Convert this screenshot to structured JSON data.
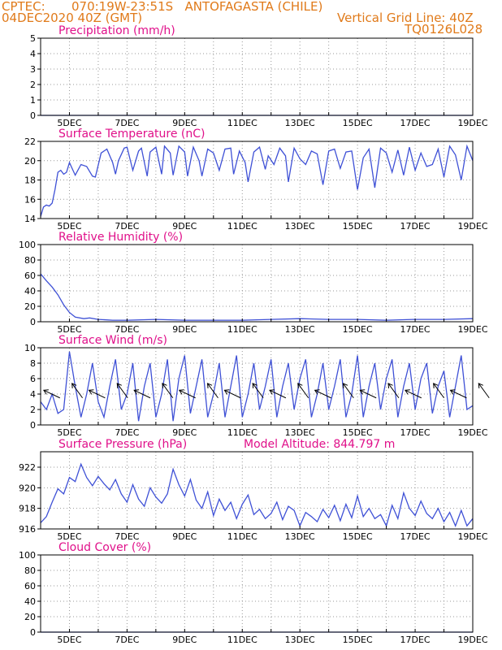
{
  "header": {
    "source": "CPTEC:",
    "location": "070:19W-23:51S   ANTOFAGASTA (CHILE)",
    "run": "04DEC2020 40Z (GMT)",
    "grid_line": "Vertical Grid Line: 40Z",
    "code": "TQ0126L028"
  },
  "x_ticks": [
    "5DEC",
    "7DEC",
    "9DEC",
    "11DEC",
    "13DEC",
    "15DEC",
    "17DEC",
    "19DEC"
  ],
  "chart_data": [
    {
      "type": "line",
      "title": "Precipitation (mm/h)",
      "ylim": [
        0,
        5
      ],
      "yticks": [
        0,
        1,
        2,
        3,
        4,
        5
      ],
      "x": [
        4.0,
        19.0
      ],
      "values": [
        0,
        0
      ],
      "color": "#3f51d6"
    },
    {
      "type": "line",
      "title": "Surface Temperature (nC)",
      "ylim": [
        14,
        22
      ],
      "yticks": [
        14,
        16,
        18,
        20,
        22
      ],
      "x": [
        4.0,
        4.1,
        4.2,
        4.3,
        4.4,
        4.5,
        4.6,
        4.7,
        4.8,
        4.9,
        5.0,
        5.2,
        5.4,
        5.6,
        5.8,
        5.9,
        6.1,
        6.3,
        6.5,
        6.6,
        6.7,
        6.9,
        7.0,
        7.2,
        7.4,
        7.5,
        7.7,
        7.8,
        8.0,
        8.2,
        8.3,
        8.5,
        8.6,
        8.8,
        9.0,
        9.1,
        9.3,
        9.5,
        9.6,
        9.8,
        10.0,
        10.2,
        10.4,
        10.6,
        10.7,
        10.9,
        11.1,
        11.2,
        11.4,
        11.6,
        11.8,
        11.9,
        12.1,
        12.3,
        12.5,
        12.6,
        12.8,
        13.0,
        13.2,
        13.4,
        13.6,
        13.8,
        14.0,
        14.2,
        14.4,
        14.6,
        14.8,
        15.0,
        15.2,
        15.4,
        15.6,
        15.8,
        16.0,
        16.2,
        16.4,
        16.6,
        16.8,
        17.0,
        17.2,
        17.4,
        17.6,
        17.8,
        18.0,
        18.2,
        18.4,
        18.6,
        18.8,
        19.0
      ],
      "values": [
        14.2,
        15.2,
        15.4,
        15.3,
        15.6,
        17.0,
        18.8,
        19.0,
        18.6,
        18.8,
        19.8,
        18.5,
        19.6,
        19.4,
        18.4,
        18.3,
        20.8,
        21.2,
        19.8,
        18.6,
        20.0,
        21.3,
        21.4,
        19.0,
        21.0,
        21.3,
        18.4,
        20.9,
        21.4,
        18.6,
        21.5,
        20.8,
        18.5,
        21.5,
        20.9,
        18.4,
        21.4,
        20.0,
        18.4,
        21.2,
        20.8,
        19.0,
        21.2,
        21.3,
        18.6,
        21.0,
        19.8,
        17.8,
        20.9,
        21.4,
        19.1,
        20.5,
        19.6,
        21.3,
        20.5,
        17.8,
        21.3,
        20.2,
        19.6,
        21.0,
        20.7,
        17.5,
        21.0,
        21.2,
        19.2,
        20.9,
        21.0,
        17.0,
        20.3,
        21.2,
        17.2,
        21.3,
        20.8,
        18.8,
        21.1,
        18.5,
        21.4,
        19.0,
        20.8,
        19.4,
        19.6,
        21.2,
        18.3,
        21.5,
        20.6,
        18.0,
        21.5,
        20.0
      ],
      "color": "#3f51d6"
    },
    {
      "type": "line",
      "title": "Relative Humidity (%)",
      "ylim": [
        0,
        100
      ],
      "yticks": [
        0,
        20,
        40,
        60,
        80,
        100
      ],
      "x": [
        4.0,
        4.2,
        4.4,
        4.6,
        4.8,
        5.0,
        5.2,
        5.5,
        5.7,
        6.0,
        6.5,
        7.0,
        8.0,
        9.0,
        10.0,
        11.0,
        12.0,
        13.0,
        14.0,
        15.0,
        16.0,
        17.0,
        18.0,
        19.0
      ],
      "values": [
        62,
        53,
        45,
        35,
        22,
        12,
        6,
        4,
        5,
        3,
        2,
        2,
        3,
        2,
        2,
        2,
        3,
        4,
        3,
        3,
        2,
        3,
        3,
        4
      ],
      "color": "#3f51d6"
    },
    {
      "type": "line",
      "title": "Surface Wind (m/s)",
      "ylim": [
        0,
        10
      ],
      "yticks": [
        0,
        2,
        4,
        6,
        8,
        10
      ],
      "x": [
        4.0,
        4.2,
        4.4,
        4.6,
        4.8,
        5.0,
        5.2,
        5.4,
        5.6,
        5.8,
        6.0,
        6.2,
        6.4,
        6.6,
        6.8,
        7.0,
        7.2,
        7.4,
        7.6,
        7.8,
        8.0,
        8.2,
        8.4,
        8.6,
        8.8,
        9.0,
        9.2,
        9.4,
        9.6,
        9.8,
        10.0,
        10.2,
        10.4,
        10.6,
        10.8,
        11.0,
        11.2,
        11.4,
        11.6,
        11.8,
        12.0,
        12.2,
        12.4,
        12.6,
        12.8,
        13.0,
        13.2,
        13.4,
        13.6,
        13.8,
        14.0,
        14.2,
        14.4,
        14.6,
        14.8,
        15.0,
        15.2,
        15.4,
        15.6,
        15.8,
        16.0,
        16.2,
        16.4,
        16.6,
        16.8,
        17.0,
        17.2,
        17.4,
        17.6,
        17.8,
        18.0,
        18.2,
        18.4,
        18.6,
        18.8,
        19.0
      ],
      "values": [
        3,
        2,
        4,
        1.5,
        2,
        9.5,
        5,
        1,
        4,
        8,
        3,
        1,
        5,
        8.5,
        2,
        4,
        8,
        0.5,
        5,
        8,
        1,
        4,
        8.5,
        0.5,
        6,
        9,
        1.5,
        5,
        8.5,
        1,
        4,
        8,
        1,
        5,
        9,
        1,
        4,
        8,
        2,
        5,
        8.5,
        1,
        5,
        8,
        2,
        6,
        8.5,
        1,
        4,
        8,
        2,
        5,
        8.5,
        1,
        4,
        9,
        1,
        5,
        8,
        2,
        6,
        8.5,
        1,
        5,
        8,
        2,
        6,
        8,
        1.5,
        5,
        7,
        1,
        5,
        9,
        2,
        2.5
      ],
      "color": "#3f51d6",
      "arrows_count": 20
    },
    {
      "type": "line",
      "title": "Surface Pressure (hPa)",
      "subtitle": "Model Altitude: 844.797 m",
      "ylim": [
        916,
        923.5
      ],
      "yticks": [
        916,
        918,
        920,
        922
      ],
      "x": [
        4.0,
        4.2,
        4.4,
        4.6,
        4.8,
        5.0,
        5.2,
        5.4,
        5.6,
        5.8,
        6.0,
        6.2,
        6.4,
        6.6,
        6.8,
        7.0,
        7.2,
        7.4,
        7.6,
        7.8,
        8.0,
        8.2,
        8.4,
        8.6,
        8.8,
        9.0,
        9.2,
        9.4,
        9.6,
        9.8,
        10.0,
        10.2,
        10.4,
        10.6,
        10.8,
        11.0,
        11.2,
        11.4,
        11.6,
        11.8,
        12.0,
        12.2,
        12.4,
        12.6,
        12.8,
        13.0,
        13.2,
        13.4,
        13.6,
        13.8,
        14.0,
        14.2,
        14.4,
        14.6,
        14.8,
        15.0,
        15.2,
        15.4,
        15.6,
        15.8,
        16.0,
        16.2,
        16.4,
        16.6,
        16.8,
        17.0,
        17.2,
        17.4,
        17.6,
        17.8,
        18.0,
        18.2,
        18.4,
        18.6,
        18.8,
        19.0
      ],
      "values": [
        916.6,
        917.2,
        918.6,
        919.9,
        919.4,
        921.0,
        920.6,
        922.3,
        921.0,
        920.2,
        921.1,
        920.4,
        919.8,
        920.8,
        919.4,
        918.6,
        920.3,
        918.9,
        918.2,
        920.0,
        919.1,
        918.5,
        919.4,
        921.8,
        920.3,
        919.2,
        920.8,
        918.8,
        918.0,
        919.6,
        917.3,
        918.9,
        917.8,
        918.6,
        917.0,
        918.4,
        919.3,
        917.4,
        917.9,
        917.0,
        917.5,
        918.6,
        916.9,
        918.2,
        917.8,
        916.3,
        917.6,
        917.2,
        916.7,
        917.9,
        917.1,
        918.3,
        916.8,
        918.4,
        917.1,
        919.2,
        917.2,
        918.0,
        917.0,
        917.4,
        916.3,
        918.3,
        917.0,
        919.5,
        918.0,
        917.3,
        918.7,
        917.5,
        917.0,
        918.0,
        916.7,
        917.6,
        916.3,
        917.8,
        916.3,
        917.0
      ],
      "color": "#3f51d6"
    },
    {
      "type": "line",
      "title": "Cloud Cover (%)",
      "ylim": [
        0,
        100
      ],
      "yticks": [
        0,
        20,
        40,
        60,
        80,
        100
      ],
      "x": [
        4.0,
        19.0
      ],
      "values": [
        0,
        0
      ],
      "color": "#3f51d6"
    }
  ]
}
